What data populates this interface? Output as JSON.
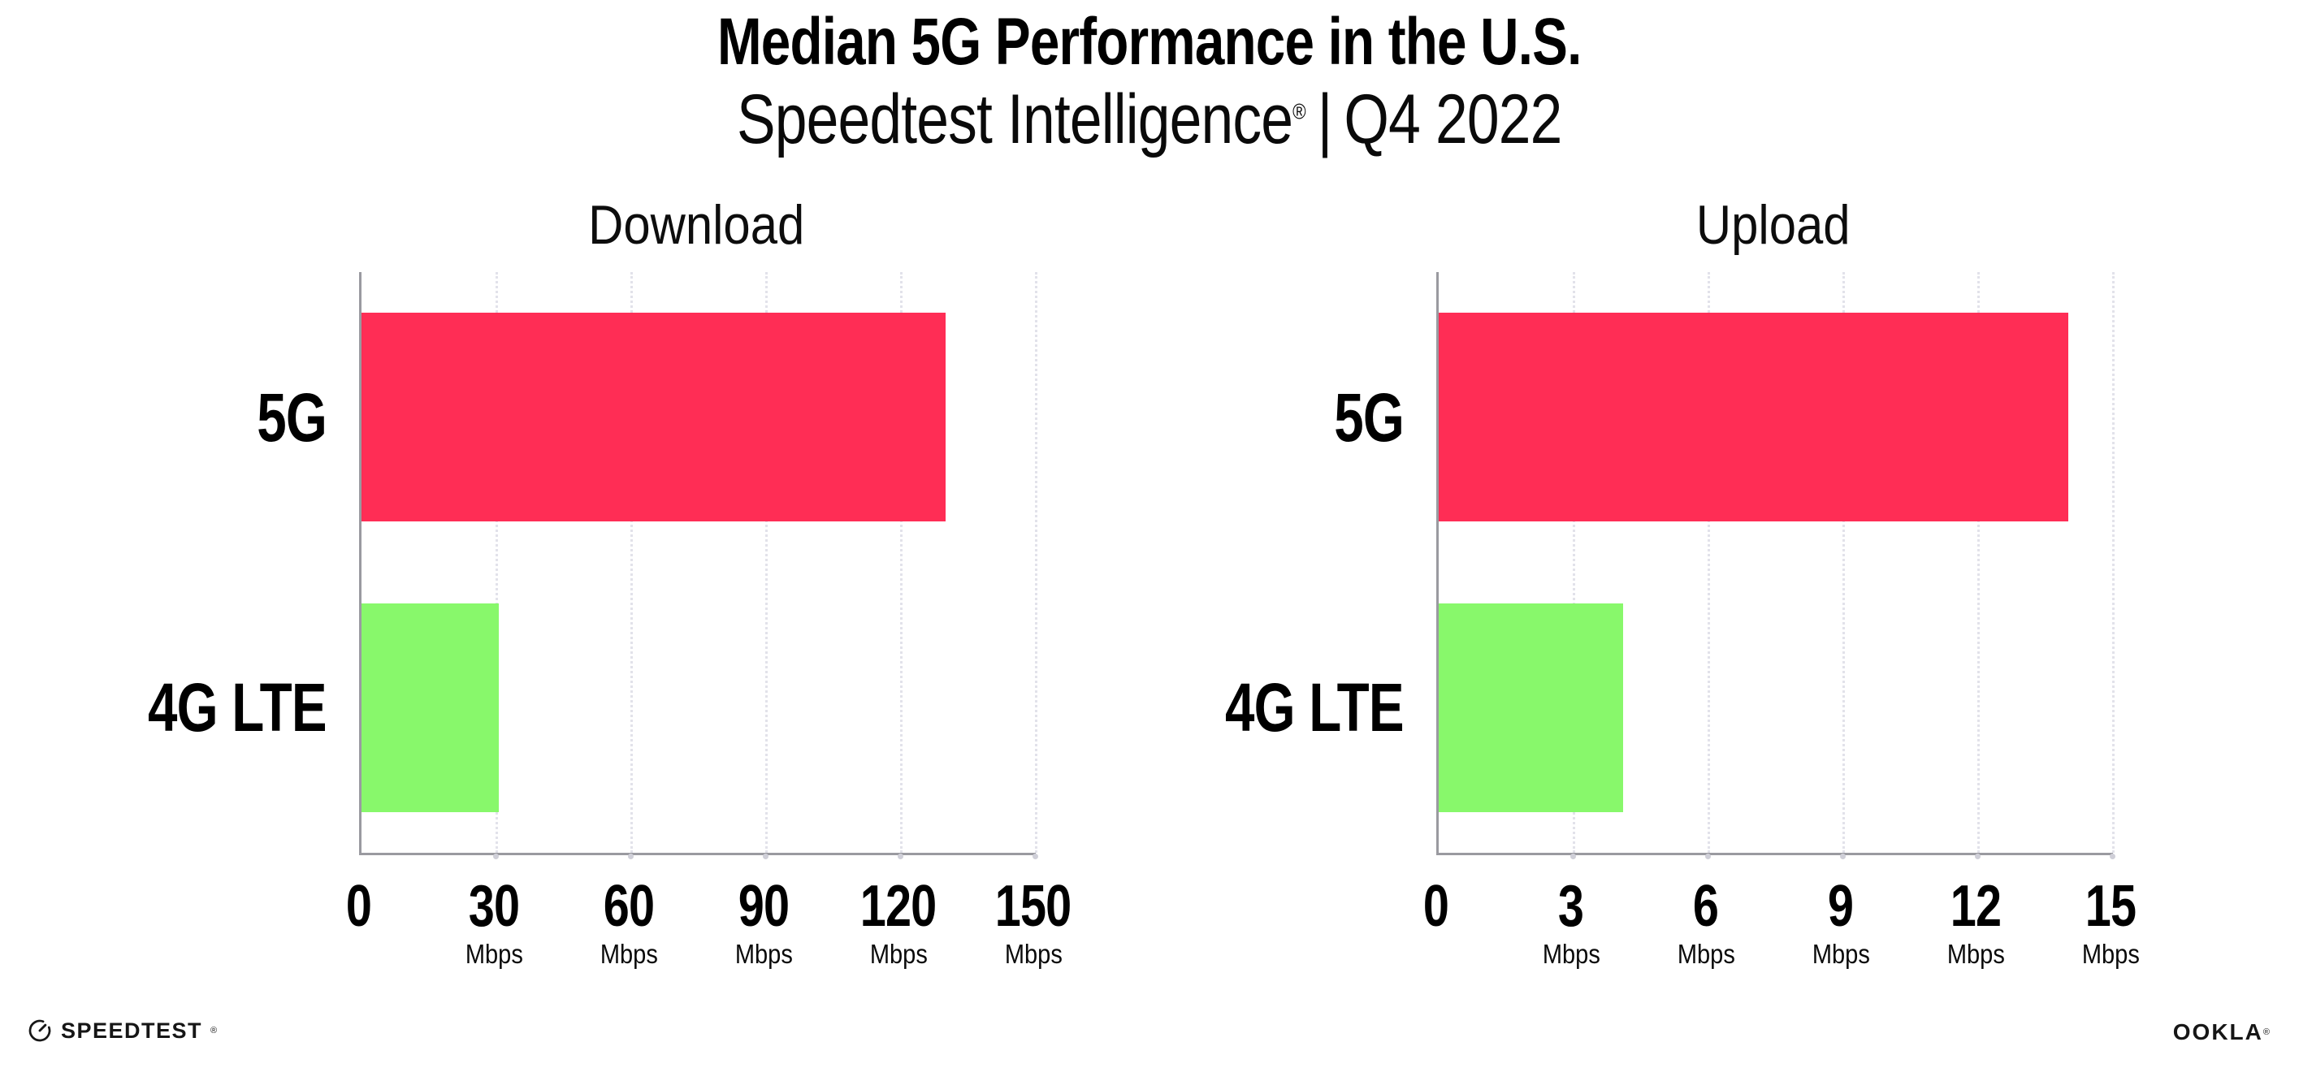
{
  "header": {
    "title": "Median 5G Performance in the U.S.",
    "subtitle": {
      "product": "Speedtest Intelligence",
      "registered_mark": "®",
      "separator": "|",
      "period": "Q4 2022"
    }
  },
  "chart_data": [
    {
      "type": "bar",
      "orientation": "horizontal",
      "title": "Download",
      "categories": [
        "5G",
        "4G LTE"
      ],
      "values": [
        130,
        30.5
      ],
      "unit": "Mbps",
      "xlim": [
        0,
        150
      ],
      "xticks": [
        0,
        30,
        60,
        90,
        120,
        150
      ],
      "bar_colors": [
        "#ff2d55",
        "#88f86b"
      ],
      "grid": "vertical-dotted",
      "data_labels": false,
      "legend": "none"
    },
    {
      "type": "bar",
      "orientation": "horizontal",
      "title": "Upload",
      "categories": [
        "5G",
        "4G LTE"
      ],
      "values": [
        14,
        4.1
      ],
      "unit": "Mbps",
      "xlim": [
        0,
        15
      ],
      "xticks": [
        0,
        3,
        6,
        9,
        12,
        15
      ],
      "bar_colors": [
        "#ff2d55",
        "#88f86b"
      ],
      "grid": "vertical-dotted",
      "data_labels": false,
      "legend": "none"
    }
  ],
  "footer": {
    "speedtest": {
      "icon": "speedtest-gauge-icon",
      "label": "SPEEDTEST",
      "mark": "®"
    },
    "ookla": {
      "label": "OOKLA",
      "mark": "®"
    }
  },
  "style": {
    "bar_pink": "#ff2d55",
    "bar_green": "#88f86b",
    "axis_color": "#9a9aa0",
    "grid_color": "#e2e2ea",
    "background": "#ffffff",
    "text_color": "#000000"
  }
}
